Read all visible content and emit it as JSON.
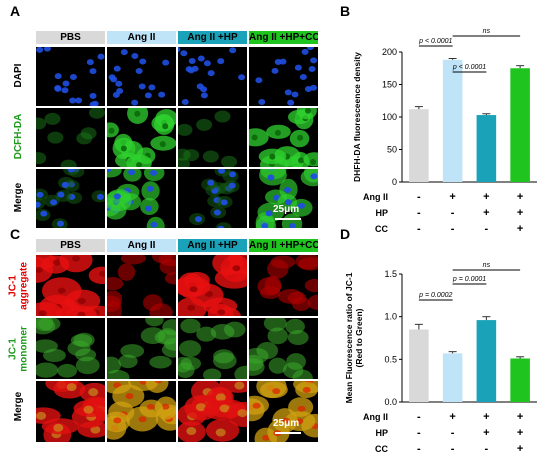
{
  "panels": {
    "A": {
      "label": "A",
      "headers": [
        {
          "text": "PBS",
          "bg": "#d9d9d9",
          "fg": "#000000"
        },
        {
          "text": "Ang II",
          "bg": "#bfe3f7",
          "fg": "#000000"
        },
        {
          "text": "Ang II +HP",
          "bg": "#1aa3b8",
          "fg": "#000000"
        },
        {
          "text": "Ang II +HP+CC",
          "bg": "#1fc41f",
          "fg": "#000000"
        }
      ],
      "rows": [
        {
          "text": "DAPI",
          "color": "#000000"
        },
        {
          "text": "DCFH-DA",
          "color": "#1f9a1f"
        },
        {
          "text": "Merge",
          "color": "#000000"
        }
      ],
      "scale_bar": "25μm"
    },
    "C": {
      "label": "C",
      "headers": [
        {
          "text": "PBS",
          "bg": "#d9d9d9",
          "fg": "#000000"
        },
        {
          "text": "Ang II",
          "bg": "#bfe3f7",
          "fg": "#000000"
        },
        {
          "text": "Ang II +HP",
          "bg": "#1aa3b8",
          "fg": "#000000"
        },
        {
          "text": "Ang II +HP+CC",
          "bg": "#1fc41f",
          "fg": "#000000"
        }
      ],
      "rows": [
        {
          "line1": "JC-1",
          "line2": "aggregate",
          "color": "#e00000"
        },
        {
          "line1": "JC-1",
          "line2": "monomer",
          "color": "#1f9a1f"
        },
        {
          "line1": "Merge",
          "line2": "",
          "color": "#000000"
        }
      ],
      "scale_bar": "25μm"
    }
  },
  "chart_data": [
    {
      "panel": "B",
      "type": "bar",
      "categories": [
        "PBS",
        "Ang II",
        "Ang II +HP",
        "Ang II +HP+CC"
      ],
      "values": [
        112,
        188,
        103,
        175
      ],
      "errors": [
        4,
        2,
        2,
        4
      ],
      "colors": [
        "#d9d9d9",
        "#bfe3f7",
        "#1aa3b8",
        "#1fc41f"
      ],
      "ylabel": "DHFH-DA fluoresceence density",
      "ylim": [
        0,
        200
      ],
      "yticks": [
        "0",
        "50",
        "100",
        "150",
        "200"
      ],
      "treatment_rows": [
        {
          "name": "Ang II",
          "marks": [
            "-",
            "+",
            "+",
            "+"
          ]
        },
        {
          "name": "HP",
          "marks": [
            "-",
            "-",
            "+",
            "+"
          ]
        },
        {
          "name": "CC",
          "marks": [
            "-",
            "-",
            "-",
            "+"
          ]
        }
      ],
      "comparisons": [
        {
          "from": 0,
          "to": 1,
          "label": "p < 0.0001"
        },
        {
          "from": 1,
          "to": 2,
          "label": "p < 0.0001"
        },
        {
          "from": 1,
          "to": 3,
          "label": "ns"
        }
      ]
    },
    {
      "panel": "D",
      "type": "bar",
      "categories": [
        "PBS",
        "Ang II",
        "Ang II +HP",
        "Ang II +HP+CC"
      ],
      "values": [
        0.85,
        0.57,
        0.96,
        0.51
      ],
      "errors": [
        0.06,
        0.02,
        0.04,
        0.02
      ],
      "colors": [
        "#d9d9d9",
        "#bfe3f7",
        "#1aa3b8",
        "#1fc41f"
      ],
      "ylabel": "Mean Fluorescence ratio of JC-1 (Red to Green)",
      "ylabel_lines": [
        "Mean Fluorescence ratio of JC-1",
        "(Red  to Green)"
      ],
      "ylim": [
        0,
        1.5
      ],
      "yticks": [
        "0.0",
        "0.5",
        "1.0",
        "1.5"
      ],
      "treatment_rows": [
        {
          "name": "Ang II",
          "marks": [
            "-",
            "+",
            "+",
            "+"
          ]
        },
        {
          "name": "HP",
          "marks": [
            "-",
            "-",
            "+",
            "+"
          ]
        },
        {
          "name": "CC",
          "marks": [
            "-",
            "-",
            "-",
            "+"
          ]
        }
      ],
      "comparisons": [
        {
          "from": 0,
          "to": 1,
          "label": "p = 0.0002"
        },
        {
          "from": 1,
          "to": 2,
          "label": "p = 0.0001"
        },
        {
          "from": 1,
          "to": 3,
          "label": "ns"
        }
      ]
    }
  ]
}
